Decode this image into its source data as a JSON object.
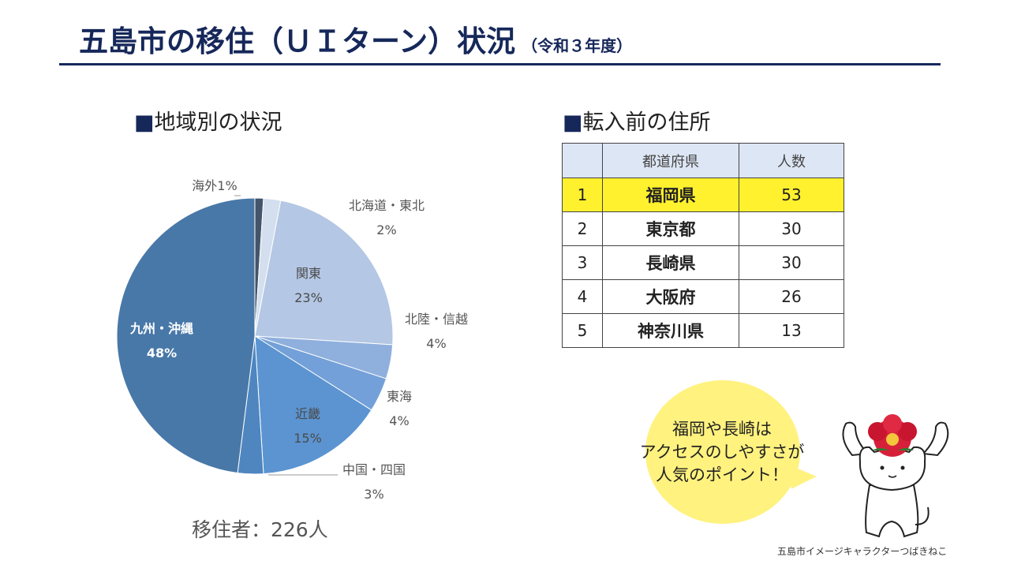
{
  "title": {
    "main": "五島市の移住（ＵＩターン）状況",
    "sub": "（令和３年度）"
  },
  "pie_section": {
    "marker": "■",
    "heading": "地域別の状況",
    "total": "移住者：226人"
  },
  "table_section": {
    "marker": "■",
    "heading": "転入前の住所",
    "columns": [
      "",
      "都道府県",
      "人数"
    ],
    "rows": [
      {
        "rank": "1",
        "pref": "福岡県",
        "count": "53",
        "highlight": true
      },
      {
        "rank": "2",
        "pref": "東京都",
        "count": "30",
        "highlight": false
      },
      {
        "rank": "3",
        "pref": "長崎県",
        "count": "30",
        "highlight": false
      },
      {
        "rank": "4",
        "pref": "大阪府",
        "count": "26",
        "highlight": false
      },
      {
        "rank": "5",
        "pref": "神奈川県",
        "count": "13",
        "highlight": false
      }
    ]
  },
  "bubble": {
    "lines": [
      "福岡や長崎は",
      "アクセスのしやすさが",
      "人気のポイント！"
    ]
  },
  "character_caption": "五島市イメージキャラクターつばきねこ",
  "chart_data": {
    "type": "pie",
    "title": "地域別の状況",
    "slices": [
      {
        "name": "海外",
        "value": 1,
        "label": "1%",
        "color": "#44546a"
      },
      {
        "name": "北海道・東北",
        "value": 2,
        "label": "2%",
        "color": "#d3deee"
      },
      {
        "name": "関東",
        "value": 23,
        "label": "23%",
        "color": "#b4c7e4"
      },
      {
        "name": "北陸・信越",
        "value": 4,
        "label": "4%",
        "color": "#8fb0dd"
      },
      {
        "name": "東海",
        "value": 4,
        "label": "4%",
        "color": "#73a0d8"
      },
      {
        "name": "近畿",
        "value": 15,
        "label": "15%",
        "color": "#5b94d1"
      },
      {
        "name": "中国・四国",
        "value": 3,
        "label": "3%",
        "color": "#4f86c0"
      },
      {
        "name": "九州・沖縄",
        "value": 48,
        "label": "48%",
        "color": "#4878a8"
      }
    ]
  }
}
